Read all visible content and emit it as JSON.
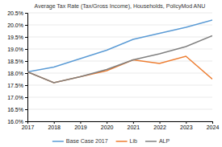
{
  "chart_data": {
    "type": "line",
    "title": "Average Tax Rate (Tax/Gross Income), Households, PolicyMod ANU",
    "x": [
      2017,
      2018,
      2019,
      2020,
      2021,
      2022,
      2023,
      2024
    ],
    "xlim": [
      2017,
      2024
    ],
    "xticks": [
      2017,
      2018,
      2019,
      2020,
      2021,
      2022,
      2023,
      2024
    ],
    "ylim": [
      16.0,
      20.5
    ],
    "yticks": [
      {
        "value": 16.0,
        "label": "16.0%"
      },
      {
        "value": 16.5,
        "label": "16.5%"
      },
      {
        "value": 17.0,
        "label": "17.0%"
      },
      {
        "value": 17.5,
        "label": "17.5%"
      },
      {
        "value": 18.0,
        "label": "18.0%"
      },
      {
        "value": 18.5,
        "label": "18.5%"
      },
      {
        "value": 19.0,
        "label": "19.0%"
      },
      {
        "value": 19.5,
        "label": "19.5%"
      },
      {
        "value": 20.0,
        "label": "20.0%"
      },
      {
        "value": 20.5,
        "label": "20.5%"
      }
    ],
    "grid": true,
    "legend": "bottom",
    "series": [
      {
        "name": "Base Case 2017",
        "color": "#5b9bd5",
        "values": [
          18.05,
          18.25,
          18.6,
          18.95,
          19.4,
          19.65,
          19.9,
          20.2
        ]
      },
      {
        "name": "Lib",
        "color": "#ed7d31",
        "values": [
          18.05,
          17.6,
          17.85,
          18.1,
          18.55,
          18.4,
          18.7,
          17.75
        ]
      },
      {
        "name": "ALP",
        "color": "#808080",
        "values": [
          18.05,
          17.6,
          17.85,
          18.15,
          18.55,
          18.8,
          19.1,
          19.55
        ]
      }
    ]
  }
}
